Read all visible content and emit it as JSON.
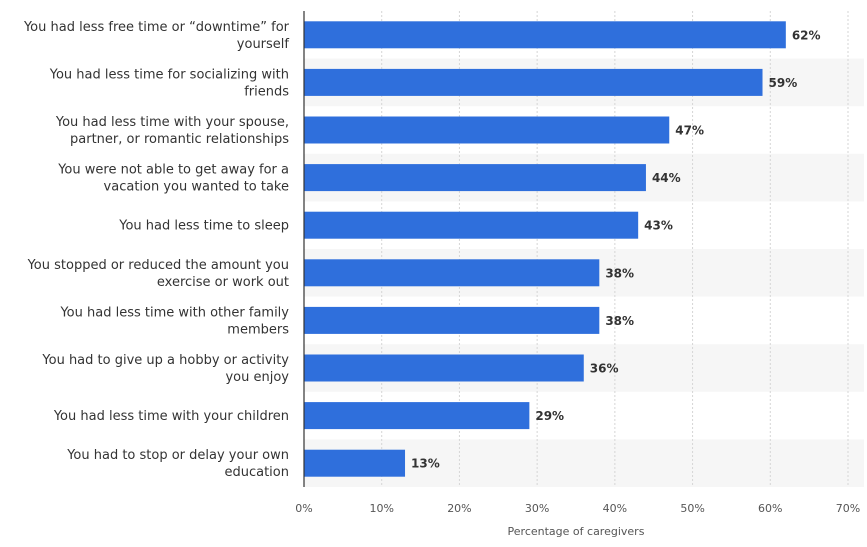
{
  "chart_data": {
    "type": "bar",
    "orientation": "horizontal",
    "categories": [
      [
        "You had less free time or “downtime” for",
        "yourself"
      ],
      [
        "You had less time for socializing with",
        "friends"
      ],
      [
        "You had less time with your spouse,",
        "partner, or romantic relationships"
      ],
      [
        "You were not able to get away for a",
        "vacation you wanted to take"
      ],
      [
        "You had less time to sleep"
      ],
      [
        "You stopped or reduced the amount you",
        "exercise or work out"
      ],
      [
        "You had less time with other family",
        "members"
      ],
      [
        "You had to give up a hobby or activity",
        "you enjoy"
      ],
      [
        "You had less time with your children"
      ],
      [
        "You had to stop or delay your own",
        "education"
      ]
    ],
    "values": [
      62,
      59,
      47,
      44,
      43,
      38,
      38,
      36,
      29,
      13
    ],
    "value_labels": [
      "62%",
      "59%",
      "47%",
      "44%",
      "43%",
      "38%",
      "38%",
      "36%",
      "29%",
      "13%"
    ],
    "x_ticks": [
      0,
      10,
      20,
      30,
      40,
      50,
      60,
      70
    ],
    "x_tick_labels": [
      "0%",
      "10%",
      "20%",
      "30%",
      "40%",
      "50%",
      "60%",
      "70%"
    ],
    "xlim": [
      0,
      70
    ],
    "xlabel": "Percentage of caregivers",
    "ylabel": "",
    "title": "",
    "grid": "vertical dashed",
    "legend": "none",
    "colors": {
      "bar": "#2f6fdc",
      "band": "#f6f6f6",
      "grid": "#d6d6d6",
      "axis": "#333333"
    }
  }
}
